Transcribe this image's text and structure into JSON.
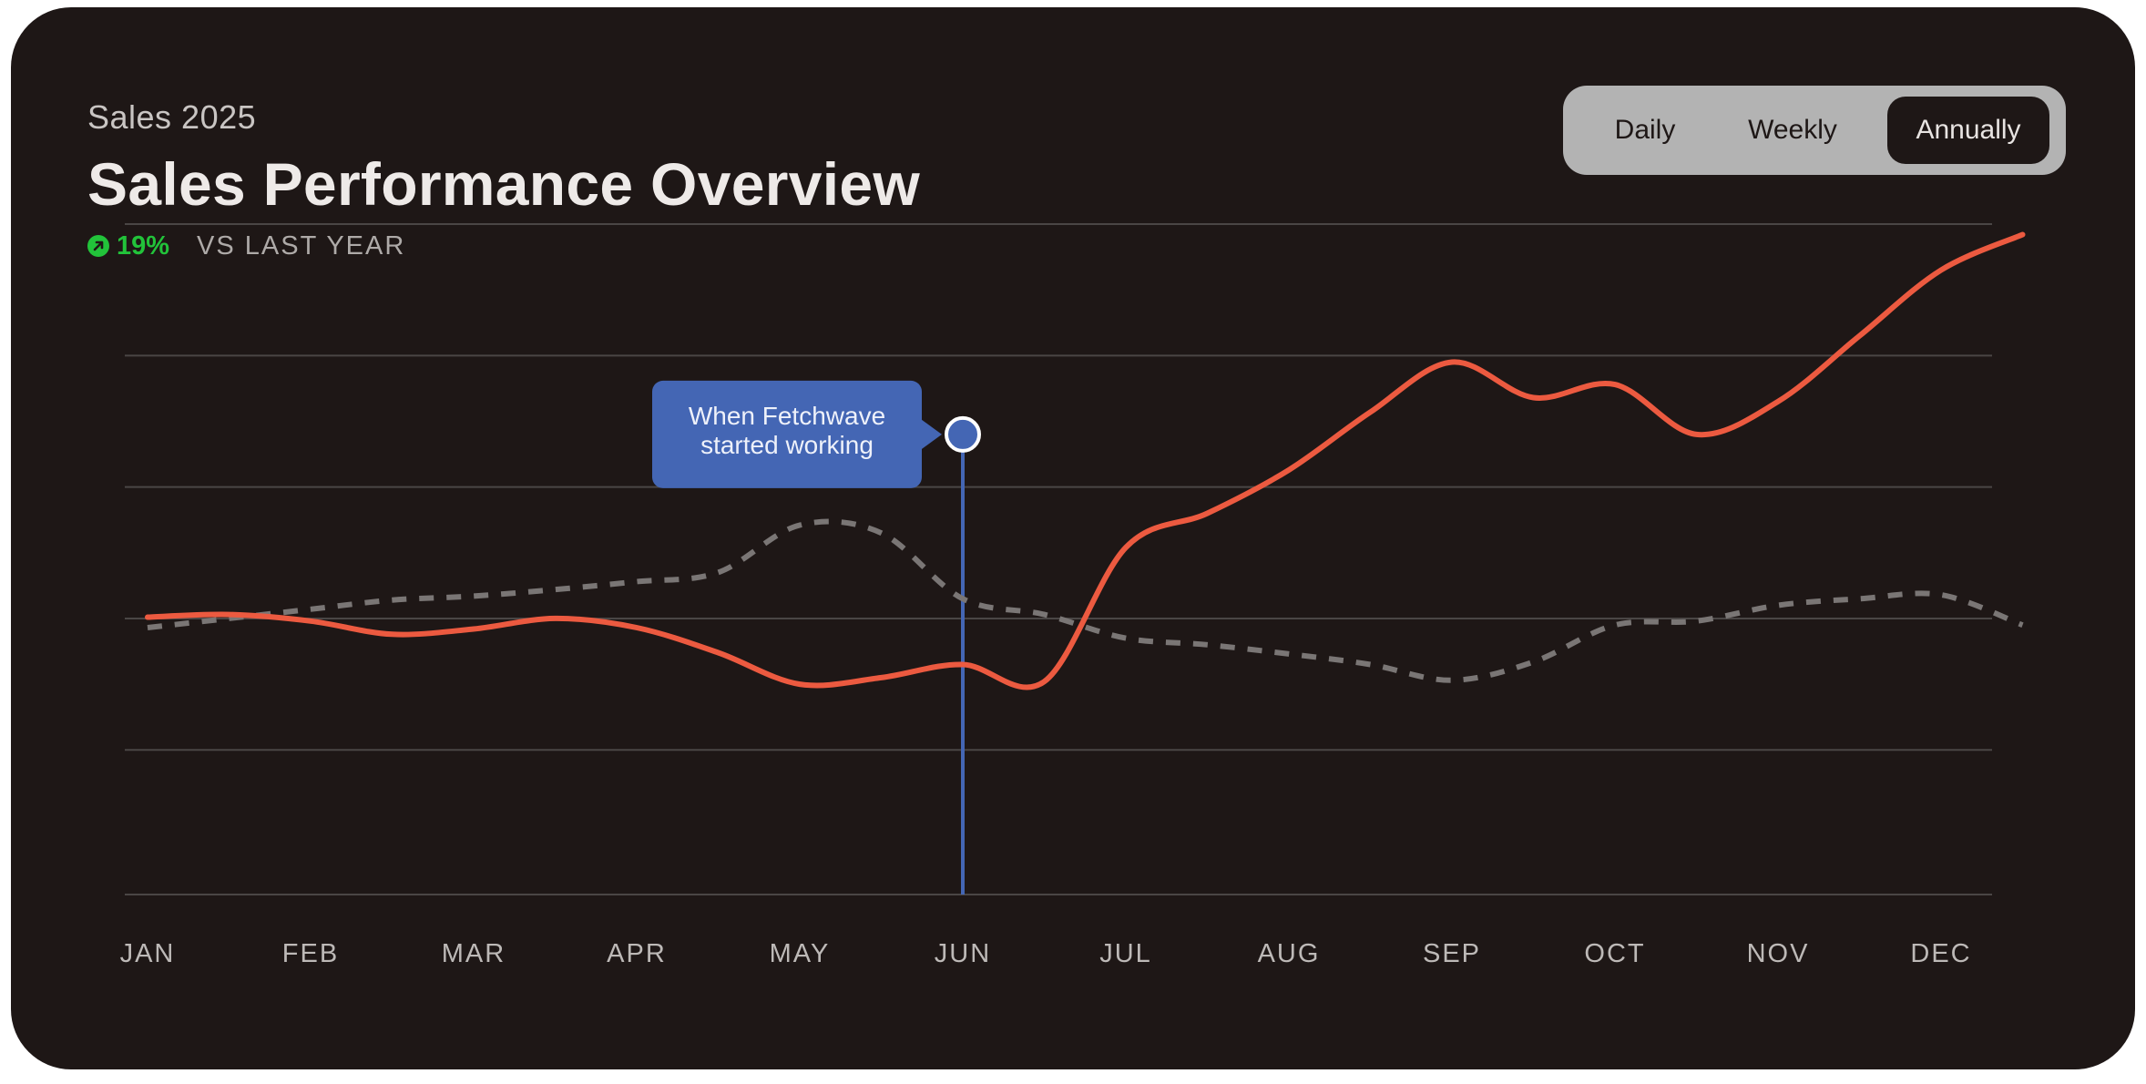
{
  "header": {
    "eyebrow": "Sales 2025",
    "title": "Sales Performance Overview",
    "change_value": "19%",
    "change_label": "VS LAST YEAR"
  },
  "period_toggle": {
    "options": [
      "Daily",
      "Weekly",
      "Annually"
    ],
    "selected": "Annually"
  },
  "colors": {
    "current_series": "#ec5a40",
    "previous_series": "#7a7675",
    "annotation": "#4466b4",
    "positive": "#22c33a",
    "card_background": "#1e1716"
  },
  "chart_data": {
    "type": "line",
    "categories": [
      "JAN",
      "FEB",
      "MAR",
      "APR",
      "MAY",
      "JUN",
      "JUL",
      "AUG",
      "SEP",
      "OCT",
      "NOV",
      "DEC"
    ],
    "x": [
      0,
      0.5,
      1,
      1.5,
      2,
      2.5,
      3,
      3.5,
      4,
      4.5,
      5,
      5.5,
      6,
      6.5,
      7,
      7.5,
      8,
      8.5,
      9,
      9.5,
      10,
      10.5,
      11,
      11.5
    ],
    "ylim": [
      0,
      51
    ],
    "grid": true,
    "yticks_visible": false,
    "series": [
      {
        "style": "solid",
        "values": [
          21.1,
          21.3,
          20.8,
          19.8,
          20.2,
          21.0,
          20.3,
          18.4,
          16.0,
          16.5,
          17.5,
          16.2,
          26.4,
          29.0,
          32.3,
          36.7,
          40.5,
          37.8,
          38.8,
          35.0,
          37.5,
          42.5,
          47.5,
          50.2
        ]
      },
      {
        "style": "dashed",
        "values": [
          20.3,
          21.0,
          21.7,
          22.4,
          22.7,
          23.2,
          23.8,
          24.5,
          28.1,
          27.5,
          22.5,
          21.3,
          19.5,
          19.0,
          18.3,
          17.5,
          16.3,
          17.7,
          20.5,
          20.8,
          22.0,
          22.5,
          22.8,
          20.5
        ]
      }
    ],
    "annotation": {
      "x": 5,
      "y": 35,
      "label_lines": [
        "When Fetchwave",
        "started working"
      ]
    }
  }
}
